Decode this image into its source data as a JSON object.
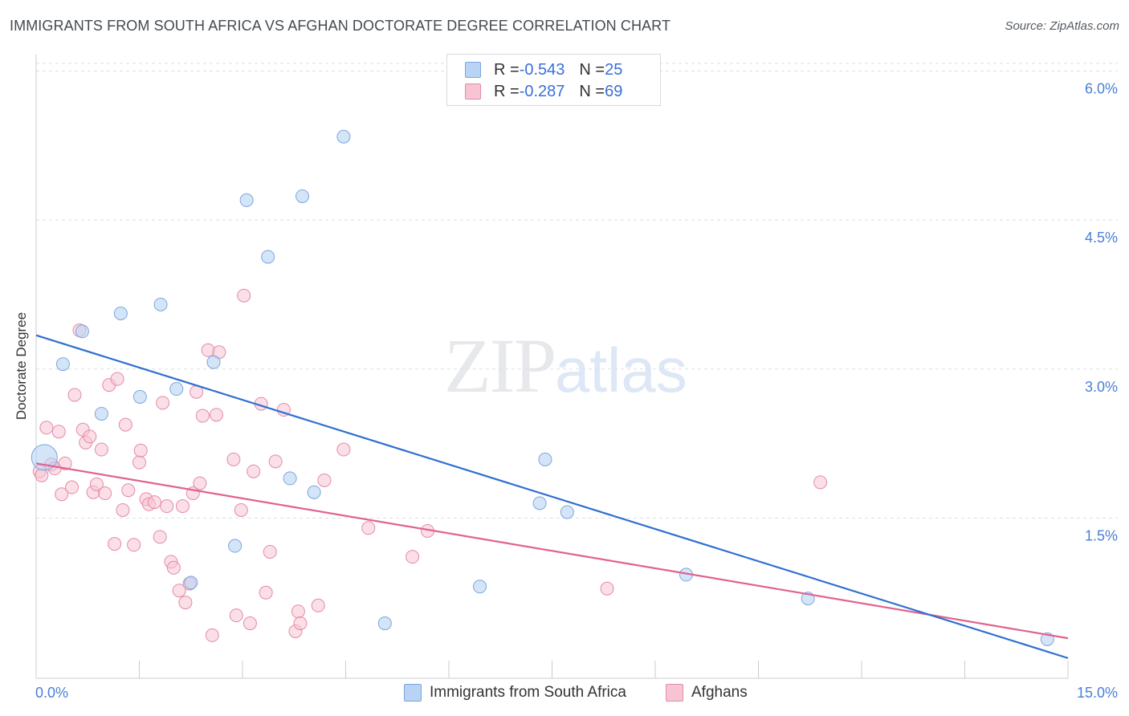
{
  "header": {
    "title": "IMMIGRANTS FROM SOUTH AFRICA VS AFGHAN DOCTORATE DEGREE CORRELATION CHART",
    "source": "Source: ZipAtlas.com"
  },
  "watermark": {
    "part1": "ZIP",
    "part2": "atlas"
  },
  "legend": {
    "rows": [
      {
        "r_label": "R = ",
        "r_value": "-0.543",
        "n_label": "N = ",
        "n_value": "25"
      },
      {
        "r_label": "R = ",
        "r_value": "-0.287",
        "n_label": "N = ",
        "n_value": "69"
      }
    ]
  },
  "bottom_legend": {
    "items": [
      {
        "label": "Immigrants from South Africa"
      },
      {
        "label": "Afghans"
      }
    ]
  },
  "colors": {
    "blue_fill": "#b9d3f4",
    "blue_stroke": "#7aa6df",
    "blue_line": "#2f6fcf",
    "pink_fill": "#f7c4d4",
    "pink_stroke": "#e48aa8",
    "pink_line": "#e0628f",
    "tick_label": "#4a7fd6",
    "grid": "#dcdfe3"
  },
  "chart_data": {
    "type": "scatter",
    "title": "IMMIGRANTS FROM SOUTH AFRICA VS AFGHAN DOCTORATE DEGREE CORRELATION CHART",
    "xlabel": "",
    "ylabel": "Doctorate Degree",
    "xlim": [
      0,
      15
    ],
    "ylim": [
      0,
      6.15
    ],
    "x_tick_labels": [
      "0.0%",
      "15.0%"
    ],
    "y_ticks": [
      1.5,
      3.0,
      4.5,
      6.0
    ],
    "y_tick_labels": [
      "1.5%",
      "3.0%",
      "4.5%",
      "6.0%"
    ],
    "grid": "horizontal dashed",
    "legend_position": "top-center",
    "series": [
      {
        "name": "Immigrants from South Africa",
        "color": "blue",
        "points": [
          [
            0.12,
            2.11
          ],
          [
            0.39,
            3.05
          ],
          [
            0.67,
            3.38
          ],
          [
            0.95,
            2.55
          ],
          [
            1.23,
            3.56
          ],
          [
            1.51,
            2.72
          ],
          [
            1.81,
            3.65
          ],
          [
            2.04,
            2.8
          ],
          [
            2.25,
            0.85
          ],
          [
            2.58,
            3.07
          ],
          [
            2.89,
            1.22
          ],
          [
            3.06,
            4.7
          ],
          [
            3.37,
            4.13
          ],
          [
            3.69,
            1.9
          ],
          [
            3.87,
            4.74
          ],
          [
            4.04,
            1.76
          ],
          [
            4.47,
            5.34
          ],
          [
            5.07,
            0.44
          ],
          [
            6.45,
            0.81
          ],
          [
            7.32,
            1.65
          ],
          [
            7.4,
            2.09
          ],
          [
            7.72,
            1.56
          ],
          [
            9.45,
            0.93
          ],
          [
            11.22,
            0.69
          ],
          [
            14.7,
            0.28
          ]
        ],
        "trend": {
          "x": [
            0.0,
            15.0
          ],
          "y": [
            3.34,
            0.09
          ]
        }
      },
      {
        "name": "Afghans",
        "color": "pink",
        "points": [
          [
            0.05,
            1.97
          ],
          [
            0.08,
            1.93
          ],
          [
            0.15,
            2.41
          ],
          [
            0.22,
            2.04
          ],
          [
            0.27,
            2.0
          ],
          [
            0.33,
            2.37
          ],
          [
            0.37,
            1.74
          ],
          [
            0.42,
            2.05
          ],
          [
            0.52,
            1.81
          ],
          [
            0.56,
            2.74
          ],
          [
            0.63,
            3.39
          ],
          [
            0.68,
            2.39
          ],
          [
            0.72,
            2.26
          ],
          [
            0.78,
            2.32
          ],
          [
            0.83,
            1.76
          ],
          [
            0.88,
            1.84
          ],
          [
            0.95,
            2.19
          ],
          [
            1.0,
            1.75
          ],
          [
            1.06,
            2.84
          ],
          [
            1.14,
            1.24
          ],
          [
            1.18,
            2.9
          ],
          [
            1.26,
            1.58
          ],
          [
            1.3,
            2.44
          ],
          [
            1.34,
            1.78
          ],
          [
            1.42,
            1.23
          ],
          [
            1.5,
            2.06
          ],
          [
            1.52,
            2.18
          ],
          [
            1.6,
            1.69
          ],
          [
            1.64,
            1.64
          ],
          [
            1.72,
            1.66
          ],
          [
            1.8,
            1.31
          ],
          [
            1.84,
            2.66
          ],
          [
            1.9,
            1.62
          ],
          [
            1.96,
            1.06
          ],
          [
            2.0,
            1.0
          ],
          [
            2.08,
            0.77
          ],
          [
            2.13,
            1.62
          ],
          [
            2.17,
            0.65
          ],
          [
            2.23,
            0.84
          ],
          [
            2.28,
            1.75
          ],
          [
            2.33,
            2.77
          ],
          [
            2.38,
            1.85
          ],
          [
            2.42,
            2.53
          ],
          [
            2.5,
            3.19
          ],
          [
            2.56,
            0.32
          ],
          [
            2.62,
            2.54
          ],
          [
            2.66,
            3.17
          ],
          [
            2.87,
            2.09
          ],
          [
            2.91,
            0.52
          ],
          [
            2.98,
            1.58
          ],
          [
            3.02,
            3.74
          ],
          [
            3.11,
            0.44
          ],
          [
            3.16,
            1.97
          ],
          [
            3.27,
            2.65
          ],
          [
            3.34,
            0.75
          ],
          [
            3.4,
            1.16
          ],
          [
            3.48,
            2.07
          ],
          [
            3.6,
            2.59
          ],
          [
            3.77,
            0.36
          ],
          [
            3.81,
            0.56
          ],
          [
            3.84,
            0.44
          ],
          [
            4.1,
            0.62
          ],
          [
            4.19,
            1.88
          ],
          [
            4.47,
            2.19
          ],
          [
            4.83,
            1.4
          ],
          [
            5.47,
            1.11
          ],
          [
            5.69,
            1.37
          ],
          [
            8.3,
            0.79
          ],
          [
            11.4,
            1.86
          ]
        ],
        "trend": {
          "x": [
            0.0,
            15.0
          ],
          "y": [
            2.05,
            0.29
          ]
        }
      }
    ]
  }
}
